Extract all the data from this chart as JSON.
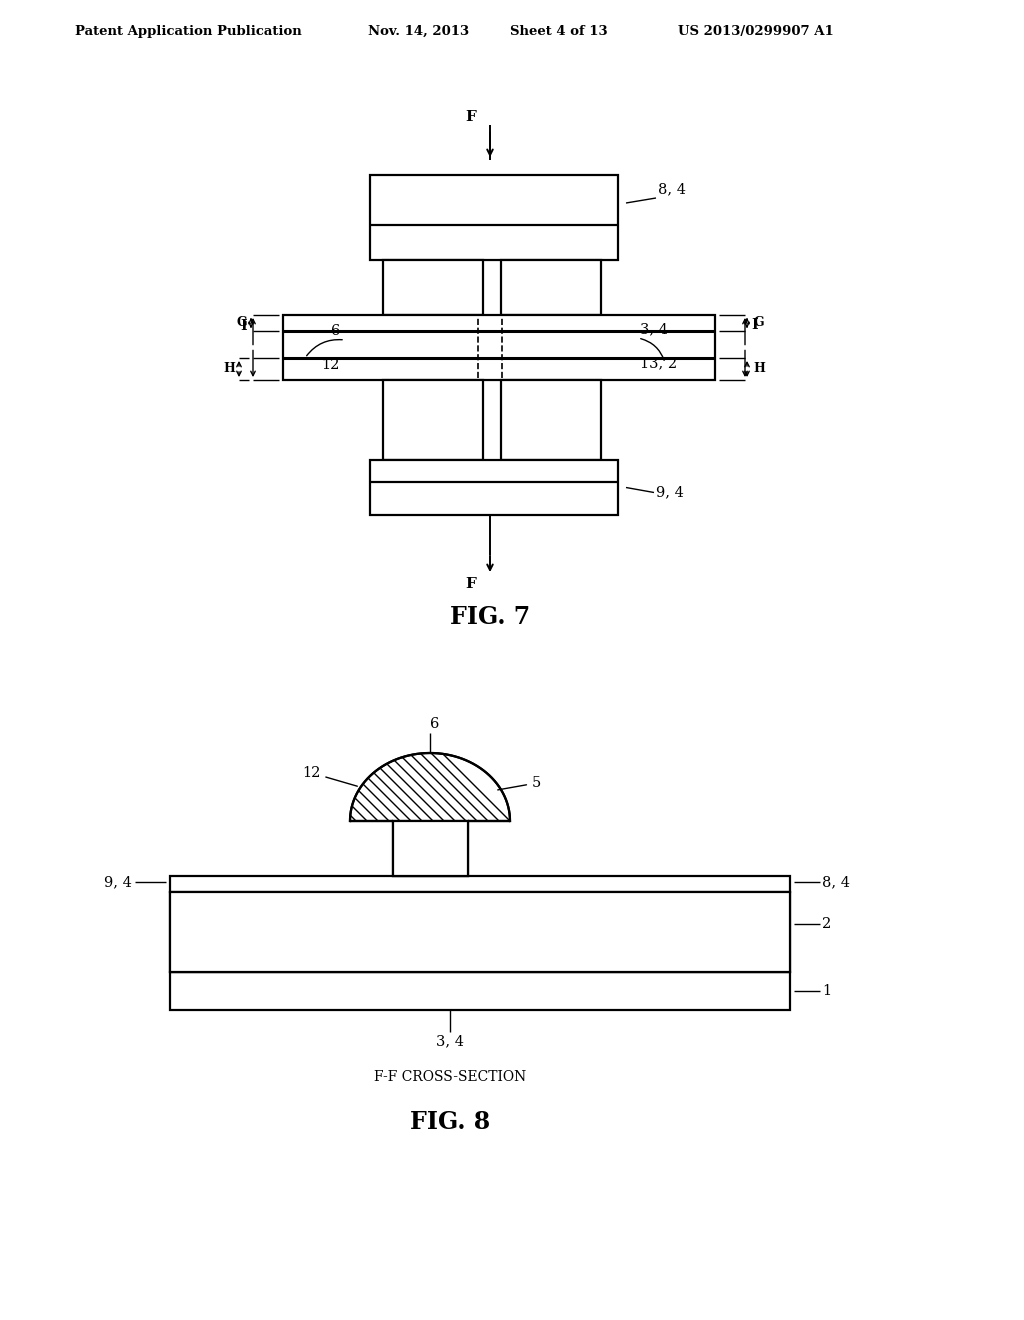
{
  "bg_color": "#ffffff",
  "lc": "#000000",
  "header_left": "Patent Application Publication",
  "header_mid1": "Nov. 14, 2013",
  "header_mid2": "Sheet 4 of 13",
  "header_right": "US 2013/0299907 A1",
  "fig7_label": "FIG. 7",
  "fig8_label": "FIG. 8",
  "fig8_sub": "F-F CROSS-SECTION"
}
